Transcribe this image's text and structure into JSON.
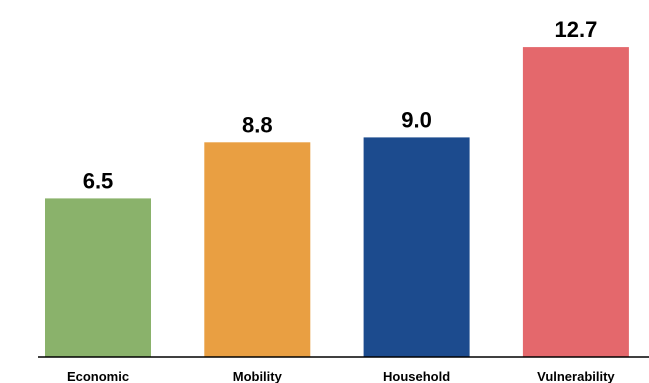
{
  "chart_data": {
    "type": "bar",
    "title": "",
    "xlabel": "",
    "ylabel": "",
    "categories": [
      "Economic",
      "Mobility",
      "Household",
      "Vulnerability"
    ],
    "values": [
      6.5,
      8.8,
      9.0,
      12.7
    ],
    "value_labels": [
      "6.5",
      "8.8",
      "9.0",
      "12.7"
    ],
    "colors": [
      "#8AB26B",
      "#E99F42",
      "#1C4B8E",
      "#E4686C"
    ],
    "ylim": [
      0,
      13.5
    ],
    "grid": false,
    "legend": "none"
  }
}
